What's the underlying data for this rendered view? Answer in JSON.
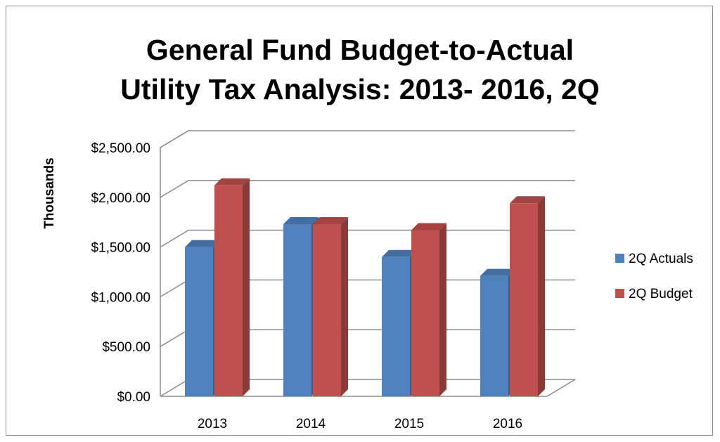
{
  "chart_data": {
    "type": "bar",
    "title": [
      "General Fund Budget-to-Actual",
      "Utility Tax Analysis: 2013- 2016, 2Q"
    ],
    "ylabel": "Thousands",
    "xlabel": "",
    "categories": [
      "2013",
      "2014",
      "2015",
      "2016"
    ],
    "series": [
      {
        "name": "2Q Actuals",
        "values": [
          1500,
          1730,
          1400,
          1210
        ],
        "color": "#4f81bd"
      },
      {
        "name": "2Q Budget",
        "values": [
          2120,
          1730,
          1670,
          1940
        ],
        "color": "#c0504d"
      }
    ],
    "ylim": [
      0,
      2500
    ],
    "yticks": [
      0,
      500,
      1000,
      1500,
      2000,
      2500
    ],
    "ytick_labels": [
      "$0.00",
      "$500.00",
      "$1,000.00",
      "$1,500.00",
      "$2,000.00",
      "$2,500.00"
    ],
    "grid": true,
    "legend": "right",
    "style": "3d-column"
  }
}
